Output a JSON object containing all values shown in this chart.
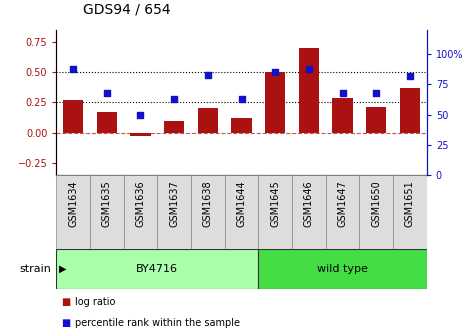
{
  "title": "GDS94 / 654",
  "categories": [
    "GSM1634",
    "GSM1635",
    "GSM1636",
    "GSM1637",
    "GSM1638",
    "GSM1644",
    "GSM1645",
    "GSM1646",
    "GSM1647",
    "GSM1650",
    "GSM1651"
  ],
  "log_ratio": [
    0.27,
    0.17,
    -0.03,
    0.1,
    0.2,
    0.12,
    0.5,
    0.7,
    0.29,
    0.21,
    0.37
  ],
  "percentile_rank": [
    88,
    68,
    50,
    63,
    83,
    63,
    85,
    88,
    68,
    68,
    82
  ],
  "bar_color": "#aa1111",
  "square_color": "#1111cc",
  "left_ylim": [
    -0.35,
    0.85
  ],
  "left_yticks": [
    -0.25,
    0.0,
    0.25,
    0.5,
    0.75
  ],
  "right_ylim": [
    0,
    120
  ],
  "right_yticks": [
    0,
    25,
    50,
    75,
    100
  ],
  "hline_zero": 0.0,
  "hline_25": 0.25,
  "hline_50": 0.5,
  "strain_groups": [
    {
      "label": "BY4716",
      "start": 0,
      "end": 5,
      "color": "#aaffaa"
    },
    {
      "label": "wild type",
      "start": 6,
      "end": 10,
      "color": "#44dd44"
    }
  ],
  "strain_label": "strain",
  "legend_items": [
    {
      "label": "log ratio",
      "color": "#aa1111"
    },
    {
      "label": "percentile rank within the sample",
      "color": "#1111cc"
    }
  ],
  "title_fontsize": 10,
  "tick_fontsize": 7,
  "label_fontsize": 7,
  "strain_fontsize": 8,
  "legend_fontsize": 7
}
